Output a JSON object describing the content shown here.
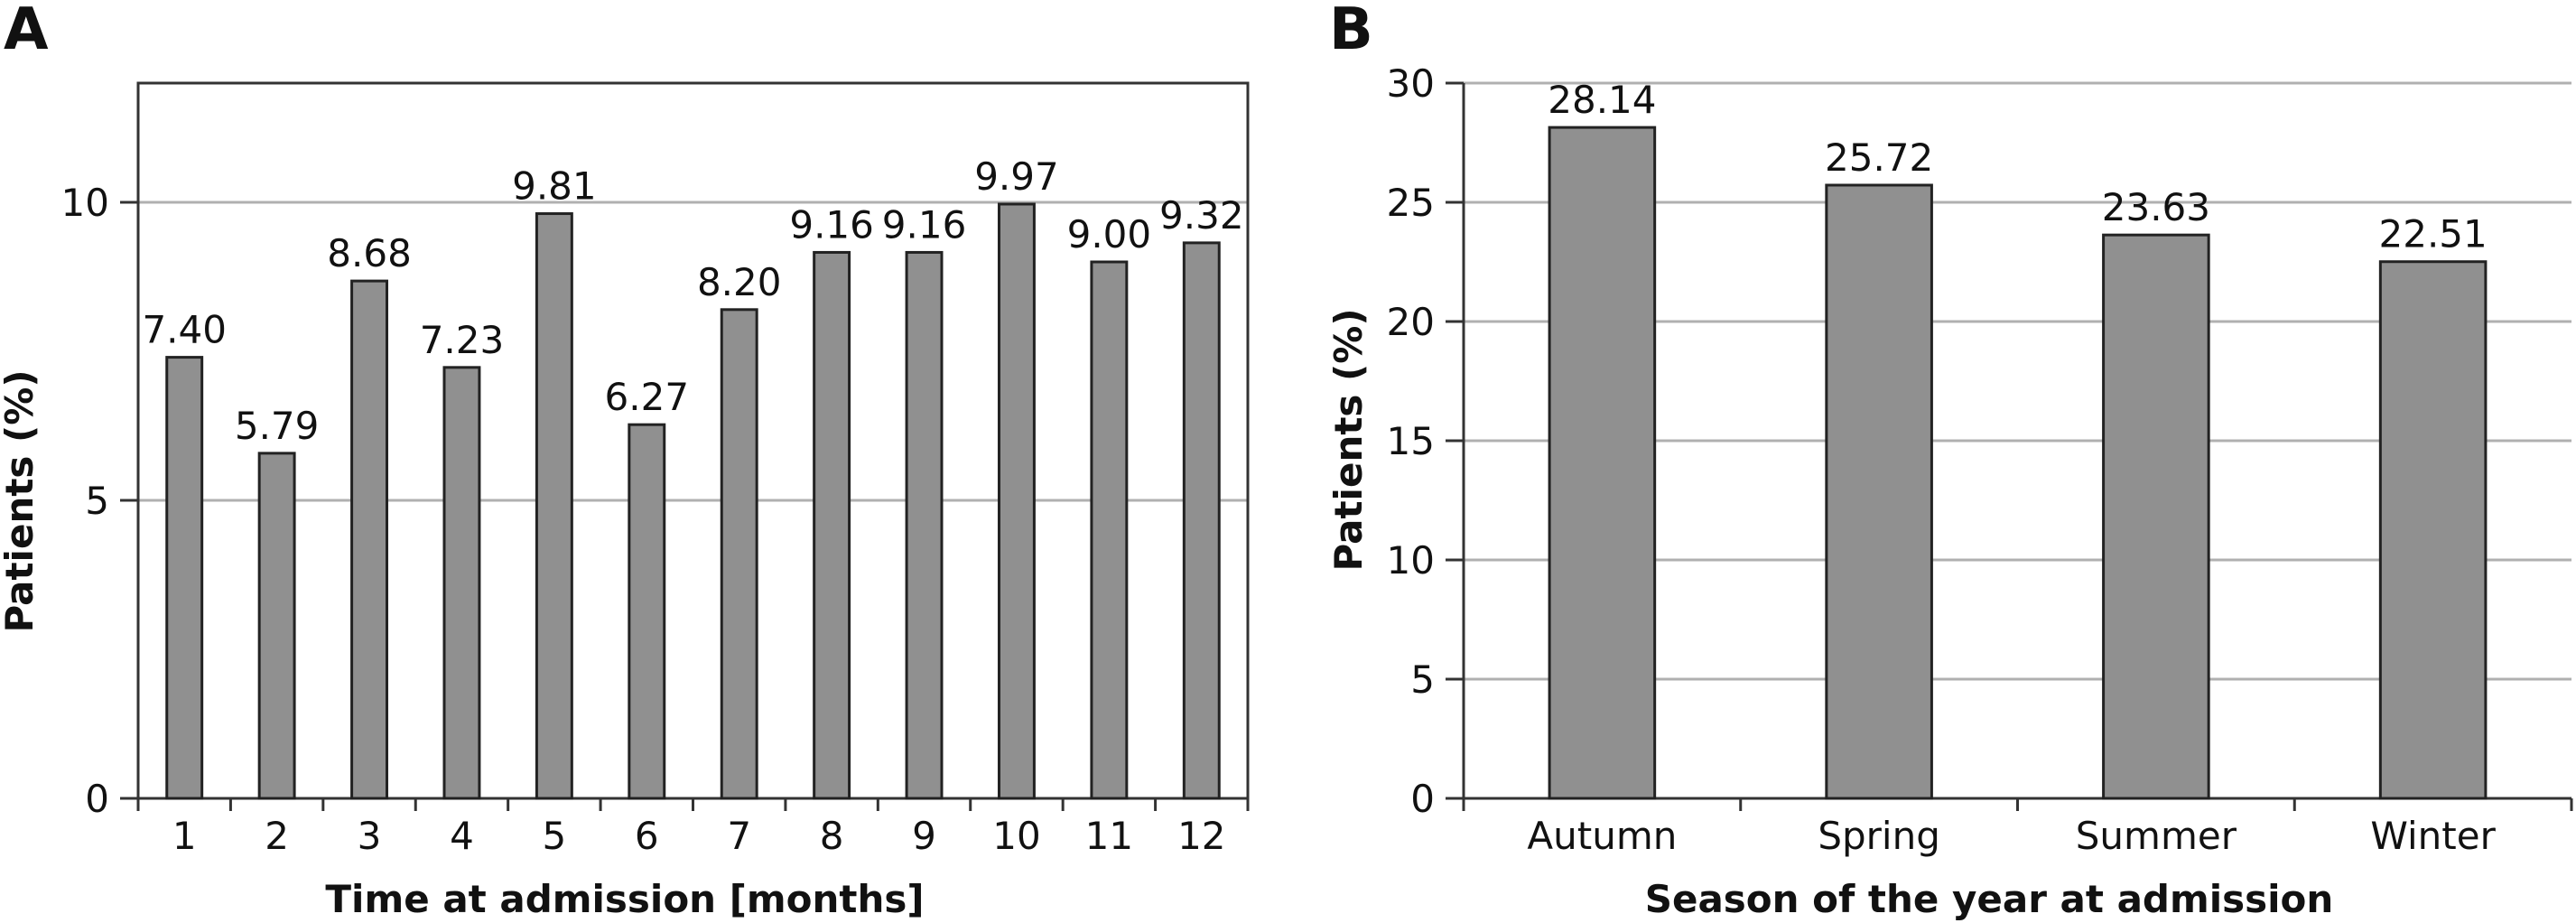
{
  "chart_data": [
    {
      "panel": "A",
      "type": "bar",
      "categories": [
        "1",
        "2",
        "3",
        "4",
        "5",
        "6",
        "7",
        "8",
        "9",
        "10",
        "11",
        "12"
      ],
      "values": [
        7.4,
        5.79,
        8.68,
        7.23,
        9.81,
        6.27,
        8.2,
        9.16,
        9.16,
        9.97,
        9.0,
        9.32
      ],
      "value_labels": [
        "7.40",
        "5.79",
        "8.68",
        "7.23",
        "9.81",
        "6.27",
        "8.20",
        "9.16",
        "9.16",
        "9.97",
        "9.00",
        "9.32"
      ],
      "xlabel": "Time at admission [months]",
      "ylabel": "Patients (%)",
      "ylim": [
        0,
        12
      ],
      "yticks": [
        0,
        5,
        10
      ],
      "grid": true,
      "bar_color": "#909090"
    },
    {
      "panel": "B",
      "type": "bar",
      "categories": [
        "Autumn",
        "Spring",
        "Summer",
        "Winter"
      ],
      "values": [
        28.14,
        25.72,
        23.63,
        22.51
      ],
      "value_labels": [
        "28.14",
        "25.72",
        "23.63",
        "22.51"
      ],
      "xlabel": "Season of the year at admission",
      "ylabel": "Patients (%)",
      "ylim": [
        0,
        30
      ],
      "yticks": [
        0,
        5,
        10,
        15,
        20,
        25,
        30
      ],
      "grid": true,
      "bar_color": "#909090"
    }
  ]
}
